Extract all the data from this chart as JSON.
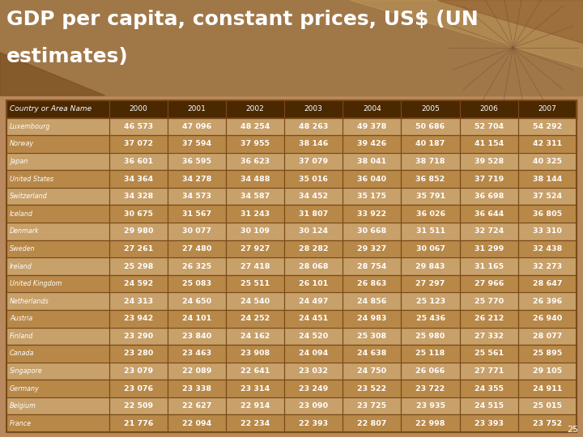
{
  "title_line1": "GDP per capita, constant prices, US$ (UN",
  "title_line2": "estimates)",
  "columns": [
    "Country or Area Name",
    "2000",
    "2001",
    "2002",
    "2003",
    "2004",
    "2005",
    "2006",
    "2007"
  ],
  "rows": [
    [
      "Luxembourg",
      "46 573",
      "47 096",
      "48 254",
      "48 263",
      "49 378",
      "50 686",
      "52 704",
      "54 292"
    ],
    [
      "Norway",
      "37 072",
      "37 594",
      "37 955",
      "38 146",
      "39 426",
      "40 187",
      "41 154",
      "42 311"
    ],
    [
      "Japan",
      "36 601",
      "36 595",
      "36 623",
      "37 079",
      "38 041",
      "38 718",
      "39 528",
      "40 325"
    ],
    [
      "United States",
      "34 364",
      "34 278",
      "34 488",
      "35 016",
      "36 040",
      "36 852",
      "37 719",
      "38 144"
    ],
    [
      "Switzerland",
      "34 328",
      "34 573",
      "34 587",
      "34 452",
      "35 175",
      "35 791",
      "36 698",
      "37 524"
    ],
    [
      "Iceland",
      "30 675",
      "31 567",
      "31 243",
      "31 807",
      "33 922",
      "36 026",
      "36 644",
      "36 805"
    ],
    [
      "Denmark",
      "29 980",
      "30 077",
      "30 109",
      "30 124",
      "30 668",
      "31 511",
      "32 724",
      "33 310"
    ],
    [
      "Sweden",
      "27 261",
      "27 480",
      "27 927",
      "28 282",
      "29 327",
      "30 067",
      "31 299",
      "32 438"
    ],
    [
      "Ireland",
      "25 298",
      "26 325",
      "27 418",
      "28 068",
      "28 754",
      "29 843",
      "31 165",
      "32 273"
    ],
    [
      "United Kingdom",
      "24 592",
      "25 083",
      "25 511",
      "26 101",
      "26 863",
      "27 297",
      "27 966",
      "28 647"
    ],
    [
      "Netherlands",
      "24 313",
      "24 650",
      "24 540",
      "24 497",
      "24 856",
      "25 123",
      "25 770",
      "26 396"
    ],
    [
      "Austria",
      "23 942",
      "24 101",
      "24 252",
      "24 451",
      "24 983",
      "25 436",
      "26 212",
      "26 940"
    ],
    [
      "Finland",
      "23 290",
      "23 840",
      "24 162",
      "24 520",
      "25 308",
      "25 980",
      "27 332",
      "28 077"
    ],
    [
      "Canada",
      "23 280",
      "23 463",
      "23 908",
      "24 094",
      "24 638",
      "25 118",
      "25 561",
      "25 895"
    ],
    [
      "Singapore",
      "23 079",
      "22 089",
      "22 641",
      "23 032",
      "24 750",
      "26 066",
      "27 771",
      "29 105"
    ],
    [
      "Germany",
      "23 076",
      "23 338",
      "23 314",
      "23 249",
      "23 522",
      "23 722",
      "24 355",
      "24 911"
    ],
    [
      "Belgium",
      "22 509",
      "22 627",
      "22 914",
      "23 090",
      "23 725",
      "23 935",
      "24 515",
      "25 015"
    ],
    [
      "France",
      "21 776",
      "22 094",
      "22 234",
      "22 393",
      "22 807",
      "22 998",
      "23 393",
      "23 752"
    ]
  ],
  "bg_color": "#b8895c",
  "title_bg_color": "#a07848",
  "header_bg": "#4a2800",
  "border_color": "#7a4a18",
  "title_color": "#ffffff",
  "header_text_color": "#ffffff",
  "row_colors": [
    "#c8a06a",
    "#b88848"
  ],
  "data_text_color": "#ffffff",
  "country_text_color": "#ffffff",
  "diag_triangle_color": "#c8a06a",
  "page_num": "25"
}
